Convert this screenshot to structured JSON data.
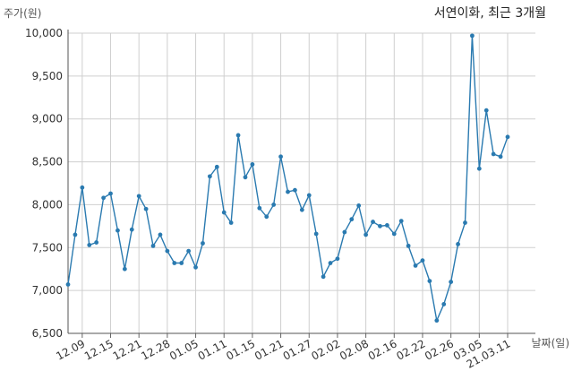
{
  "chart_data": {
    "type": "line",
    "title": "서연이화, 최근 3개월",
    "ylabel": "주가(원)",
    "xlabel": "날짜(일)",
    "ylim": [
      6500,
      10000
    ],
    "yticks": [
      6500,
      7000,
      7500,
      8000,
      8500,
      9000,
      9500,
      10000
    ],
    "ytick_labels": [
      "6,500",
      "7,000",
      "7,500",
      "8,000",
      "8,500",
      "9,000",
      "9,500",
      "10,000"
    ],
    "xtick_labels": [
      "12.09",
      "12.15",
      "12.21",
      "12.28",
      "01.05",
      "01.11",
      "01.15",
      "01.21",
      "01.27",
      "02.02",
      "02.08",
      "02.16",
      "02.22",
      "02.26",
      "03.05",
      "21.03.11"
    ],
    "xtick_index": [
      2,
      6,
      10,
      14,
      18,
      22,
      26,
      30,
      34,
      38,
      42,
      46,
      50,
      54,
      58,
      62
    ],
    "grid": true,
    "color": "#2a7ab0",
    "series": [
      {
        "values": [
          7070,
          7650,
          8200,
          7530,
          7560,
          8080,
          8130,
          7700,
          7250,
          7710,
          8100,
          7950,
          7520,
          7650,
          7460,
          7320,
          7320,
          7460,
          7270,
          7550,
          8330,
          8440,
          7910,
          7790,
          8810,
          8320,
          8470,
          7960,
          7860,
          8000,
          8560,
          8150,
          8170,
          7940,
          8110,
          7660,
          7160,
          7320,
          7370,
          7680,
          7830,
          7990,
          7650,
          7800,
          7750,
          7760,
          7660,
          7810,
          7520,
          7290,
          7350,
          7110,
          6650,
          6840,
          7100,
          7540,
          7790,
          9970,
          8420,
          9100,
          8590,
          8560,
          8790
        ]
      }
    ]
  }
}
